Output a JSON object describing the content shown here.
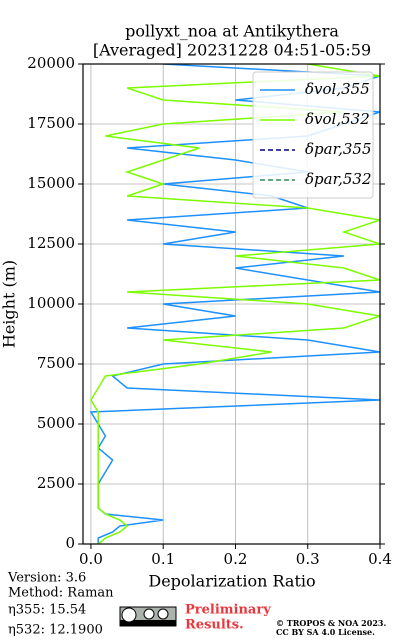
{
  "chart_data": {
    "type": "line",
    "title": "pollyxt_noa at Antikythera",
    "subtitle": "[Averaged] 20231228 04:51-05:59",
    "x_label": "Depolarization Ratio",
    "y_label": "Height (m)",
    "xlim": [
      -0.011,
      0.4
    ],
    "ylim": [
      0,
      20000
    ],
    "xticks": [
      {
        "value": 0,
        "label": "0.0"
      },
      0.1,
      0.2,
      0.3,
      0.4
    ],
    "yticks": [
      0,
      2500,
      5000,
      7500,
      10000,
      12500,
      15000,
      17500,
      20000
    ],
    "grid": true,
    "legend": "upper right",
    "y": [
      0,
      250,
      500,
      750,
      1000,
      1250,
      1500,
      2000,
      2500,
      3000,
      3500,
      4000,
      4500,
      5000,
      5500,
      6000,
      6500,
      7000,
      7500,
      8000,
      8500,
      9000,
      9500,
      10000,
      10500,
      11000,
      11500,
      12000,
      12500,
      13000,
      13500,
      14000,
      14500,
      15000,
      15500,
      16000,
      16500,
      17000,
      17500,
      18000,
      18500,
      19000,
      19500,
      20000
    ],
    "series": [
      {
        "name": "δvol,355",
        "color": "#1e90ff",
        "dash": false,
        "values": [
          0.01,
          0.01,
          0.03,
          0.04,
          0.1,
          0.02,
          0.01,
          0.01,
          0.01,
          0.02,
          0.03,
          0.01,
          0.02,
          0.01,
          0.0,
          0.4,
          0.05,
          0.03,
          0.1,
          0.4,
          0.3,
          0.05,
          0.2,
          0.1,
          0.4,
          0.3,
          0.2,
          0.35,
          0.1,
          0.2,
          0.05,
          0.3,
          0.25,
          0.1,
          0.3,
          0.2,
          0.05,
          0.3,
          0.35,
          0.4,
          0.2,
          0.35,
          0.4,
          0.1
        ]
      },
      {
        "name": "δvol,532",
        "color": "#7cfc00",
        "dash": false,
        "values": [
          0.01,
          0.02,
          0.04,
          0.05,
          0.04,
          0.02,
          0.01,
          0.01,
          0.01,
          0.01,
          0.01,
          0.01,
          0.01,
          0.01,
          0.01,
          0.0,
          0.01,
          0.02,
          0.15,
          0.25,
          0.1,
          0.35,
          0.4,
          0.3,
          0.05,
          0.4,
          0.35,
          0.2,
          0.4,
          0.35,
          0.4,
          0.3,
          0.05,
          0.1,
          0.05,
          0.1,
          0.15,
          0.02,
          0.1,
          0.35,
          0.1,
          0.05,
          0.4,
          0.3
        ]
      },
      {
        "name": "δpar,355",
        "color": "#00008b",
        "dash": true
      },
      {
        "name": "δpar,532",
        "color": "#2e8b57",
        "dash": true
      }
    ]
  },
  "footer": {
    "version": "Version: 3.6",
    "method": "Method: Raman",
    "eta355": "η355:  15.54",
    "eta532": "η532: 12.1900",
    "notice": [
      "Preliminary",
      "Results."
    ],
    "copyright": [
      "© TROPOS & NOA 2023.",
      "CC BY SA 4.0 License."
    ]
  }
}
